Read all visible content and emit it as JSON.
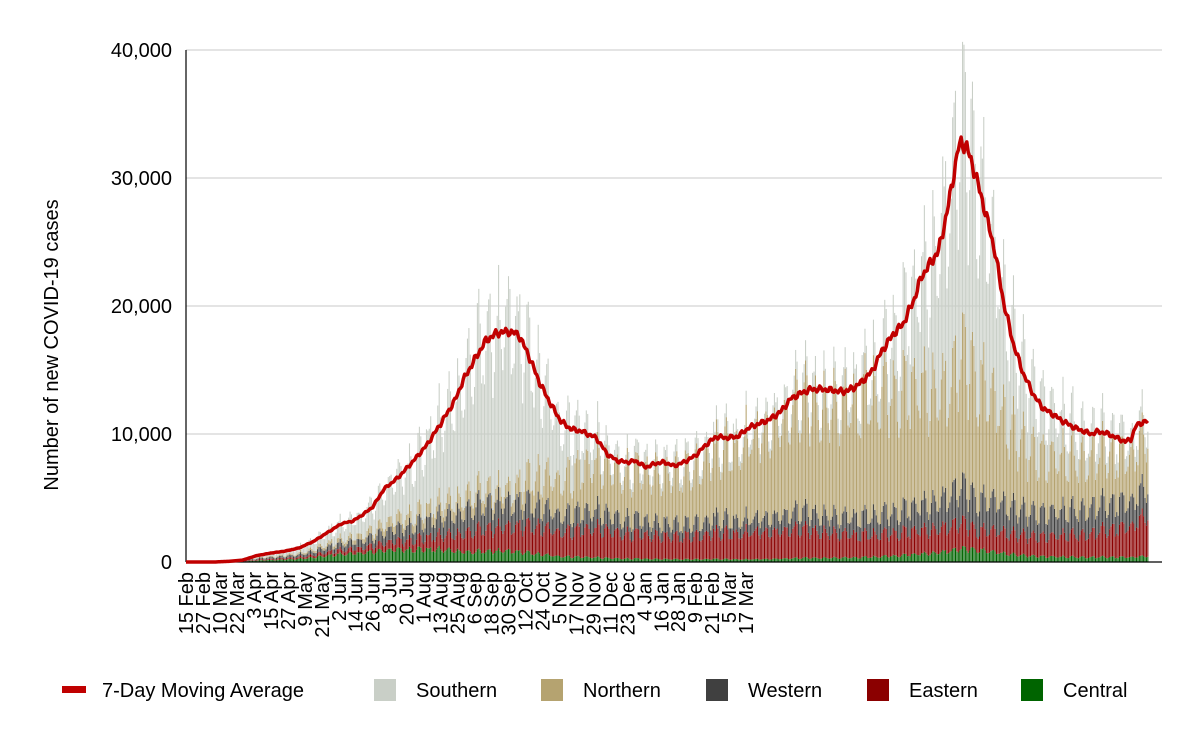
{
  "chart_data": {
    "type": "bar",
    "stacked": true,
    "ylabel": "Number of new COVID-19 cases",
    "ylim": [
      0,
      40000
    ],
    "yticks": [
      {
        "value": 0,
        "label": "0"
      },
      {
        "value": 10000,
        "label": "10,000"
      },
      {
        "value": 20000,
        "label": "20,000"
      },
      {
        "value": 30000,
        "label": "30,000"
      },
      {
        "value": 40000,
        "label": "40,000"
      }
    ],
    "xticks": [
      "15 Feb",
      "27 Feb",
      "10 Mar",
      "22 Mar",
      "3 Apr",
      "15 Apr",
      "27 Apr",
      "9 May",
      "21 May",
      "2 Jun",
      "14 Jun",
      "26 Jun",
      "8 Jul",
      "20 Jul",
      "1 Aug",
      "13 Aug",
      "25 Aug",
      "6 Sep",
      "18 Sep",
      "30 Sep",
      "12 Oct",
      "24 Oct",
      "5 Nov",
      "17 Nov",
      "29 Nov",
      "11 Dec",
      "23 Dec",
      "4 Jan",
      "16 Jan",
      "28 Jan",
      "9 Feb",
      "21 Feb",
      "5 Mar",
      "17 Mar"
    ],
    "grid": true,
    "legend_position": "bottom",
    "series": [
      {
        "name": "7-Day Moving Average",
        "type": "line",
        "color": "#c00000"
      },
      {
        "name": "Southern",
        "type": "bar",
        "color": "#c9cfc7"
      },
      {
        "name": "Northern",
        "type": "bar",
        "color": "#b5a370"
      },
      {
        "name": "Western",
        "type": "bar",
        "color": "#404040"
      },
      {
        "name": "Eastern",
        "type": "bar",
        "color": "#8b0000"
      },
      {
        "name": "Central",
        "type": "bar",
        "color": "#006400"
      }
    ],
    "moving_average_keypoints": [
      [
        0,
        0
      ],
      [
        20,
        0
      ],
      [
        30,
        50
      ],
      [
        40,
        150
      ],
      [
        50,
        500
      ],
      [
        60,
        700
      ],
      [
        70,
        850
      ],
      [
        80,
        1100
      ],
      [
        90,
        1600
      ],
      [
        100,
        2300
      ],
      [
        110,
        3000
      ],
      [
        118,
        3200
      ],
      [
        125,
        3700
      ],
      [
        132,
        4300
      ],
      [
        140,
        5700
      ],
      [
        150,
        6600
      ],
      [
        160,
        7800
      ],
      [
        170,
        9100
      ],
      [
        180,
        10800
      ],
      [
        190,
        12600
      ],
      [
        196,
        14200
      ],
      [
        205,
        16000
      ],
      [
        212,
        17300
      ],
      [
        220,
        17900
      ],
      [
        228,
        18000
      ],
      [
        235,
        17800
      ],
      [
        242,
        16200
      ],
      [
        250,
        14000
      ],
      [
        258,
        12300
      ],
      [
        265,
        11000
      ],
      [
        272,
        10400
      ],
      [
        280,
        10200
      ],
      [
        290,
        9700
      ],
      [
        298,
        8400
      ],
      [
        305,
        7900
      ],
      [
        312,
        7800
      ],
      [
        318,
        7900
      ],
      [
        325,
        7400
      ],
      [
        332,
        7700
      ],
      [
        338,
        7800
      ],
      [
        345,
        7500
      ],
      [
        352,
        7800
      ],
      [
        360,
        8300
      ],
      [
        368,
        9200
      ],
      [
        375,
        9800
      ],
      [
        382,
        9700
      ],
      [
        390,
        9800
      ],
      [
        398,
        10500
      ],
      [
        405,
        10800
      ],
      [
        412,
        11100
      ],
      [
        420,
        11700
      ],
      [
        428,
        12800
      ],
      [
        435,
        13200
      ],
      [
        442,
        13500
      ],
      [
        450,
        13500
      ],
      [
        458,
        13400
      ],
      [
        465,
        13300
      ],
      [
        472,
        13600
      ],
      [
        478,
        14100
      ],
      [
        485,
        14900
      ],
      [
        492,
        16500
      ],
      [
        500,
        17800
      ],
      [
        507,
        18600
      ],
      [
        515,
        20600
      ],
      [
        520,
        22300
      ],
      [
        526,
        23300
      ],
      [
        532,
        24300
      ],
      [
        538,
        27300
      ],
      [
        542,
        29800
      ],
      [
        546,
        32300
      ],
      [
        548,
        32800
      ],
      [
        552,
        32400
      ],
      [
        558,
        30300
      ],
      [
        565,
        27400
      ],
      [
        572,
        24200
      ],
      [
        578,
        20300
      ],
      [
        585,
        17000
      ],
      [
        592,
        14700
      ],
      [
        600,
        12900
      ],
      [
        606,
        12000
      ],
      [
        612,
        11600
      ],
      [
        620,
        11000
      ],
      [
        628,
        10500
      ],
      [
        635,
        10200
      ],
      [
        640,
        10000
      ],
      [
        645,
        10200
      ],
      [
        652,
        10000
      ],
      [
        658,
        9700
      ],
      [
        664,
        9400
      ],
      [
        668,
        9600
      ],
      [
        672,
        10700
      ],
      [
        676,
        10900
      ],
      [
        680,
        11000
      ]
    ]
  },
  "legend": {
    "items": [
      {
        "label": "7-Day Moving Average",
        "color": "#c00000",
        "kind": "line"
      },
      {
        "label": "Southern",
        "color": "#c9cfc7",
        "kind": "box"
      },
      {
        "label": "Northern",
        "color": "#b5a370",
        "kind": "box"
      },
      {
        "label": "Western",
        "color": "#404040",
        "kind": "box"
      },
      {
        "label": "Eastern",
        "color": "#8b0000",
        "kind": "box"
      },
      {
        "label": "Central",
        "color": "#006400",
        "kind": "box"
      }
    ]
  }
}
